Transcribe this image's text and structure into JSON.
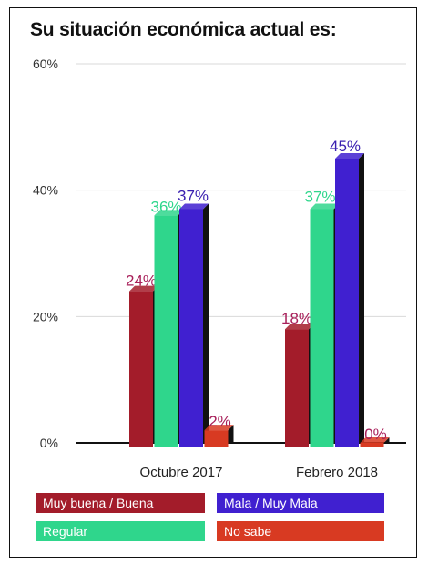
{
  "title": "Su situación económica actual es:",
  "colors": {
    "muy_buena": "#a31c2a",
    "mala": "#4020d0",
    "regular": "#2fd68c",
    "no_sabe": "#d83a22"
  },
  "chart_data": {
    "type": "bar",
    "title": "Su situación económica actual es:",
    "categories": [
      "Octubre 2017",
      "Febrero 2018"
    ],
    "series": [
      {
        "name": "Muy buena / Buena",
        "values": [
          24,
          18
        ],
        "labels": [
          "24%",
          "18%"
        ],
        "color": "#a31c2a",
        "label_color": "#a8205a"
      },
      {
        "name": "Regular",
        "values": [
          36,
          37
        ],
        "labels": [
          "36%",
          "37%"
        ],
        "color": "#2fd68c",
        "label_color": "#2fd68c"
      },
      {
        "name": "Mala / Muy Mala",
        "values": [
          37,
          45
        ],
        "labels": [
          "37%",
          "45%"
        ],
        "color": "#4020d0",
        "label_color": "#3a20b0"
      },
      {
        "name": "No sabe",
        "values": [
          2,
          0
        ],
        "labels": [
          "2%",
          "0%"
        ],
        "color": "#d83a22",
        "label_color": "#a8205a"
      }
    ],
    "yticks": [
      "0%",
      "20%",
      "40%",
      "60%"
    ],
    "ylim": [
      0,
      60
    ],
    "grid": true,
    "legend_position": "bottom"
  },
  "legend": [
    {
      "label": "Muy buena / Buena",
      "color": "#a31c2a"
    },
    {
      "label": "Mala / Muy Mala",
      "color": "#4020d0"
    },
    {
      "label": "Regular",
      "color": "#2fd68c"
    },
    {
      "label": "No sabe",
      "color": "#d83a22"
    }
  ]
}
